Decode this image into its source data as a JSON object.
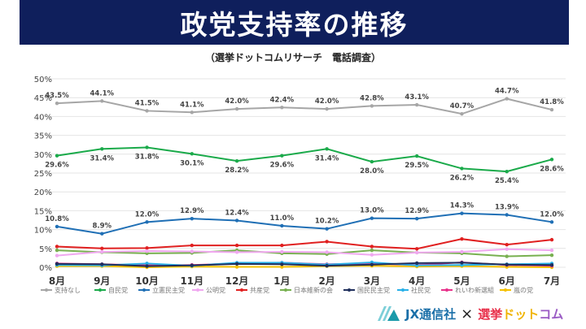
{
  "header": {
    "title": "政党支持率の推移",
    "subtitle": "（選挙ドットコムリサーチ　電話調査）"
  },
  "logo": {
    "left": "JX通信社",
    "cross": "×",
    "right_a": "選挙",
    "right_b": "ドット",
    "right_c": "コム"
  },
  "chart_data": {
    "type": "line",
    "categories": [
      "8月",
      "9月",
      "10月",
      "11月",
      "12月",
      "1月",
      "2月",
      "3月",
      "4月",
      "5月",
      "6月",
      "7月"
    ],
    "ylim": [
      0,
      50
    ],
    "yticks": [
      "0%",
      "5%",
      "10%",
      "15%",
      "20%",
      "25%",
      "30%",
      "35%",
      "40%",
      "45%",
      "50%"
    ],
    "grid": true,
    "legend_position": "bottom",
    "series": [
      {
        "name": "支持なし",
        "color": "#a6a6a6",
        "labels": "above",
        "values": [
          43.5,
          44.1,
          41.5,
          41.1,
          42.0,
          42.4,
          42.0,
          42.8,
          43.1,
          40.7,
          44.7,
          41.8
        ]
      },
      {
        "name": "自民党",
        "color": "#1aaa4a",
        "labels": "below",
        "values": [
          29.6,
          31.4,
          31.8,
          30.1,
          28.2,
          29.6,
          31.4,
          28.0,
          29.5,
          26.2,
          25.4,
          28.6
        ]
      },
      {
        "name": "立憲民主党",
        "color": "#1f6fb5",
        "labels": "above",
        "values": [
          10.8,
          8.9,
          12.0,
          12.9,
          12.4,
          11.0,
          10.2,
          13.0,
          12.9,
          14.3,
          13.9,
          12.0
        ]
      },
      {
        "name": "公明党",
        "color": "#f0a8f0",
        "values": [
          3.1,
          4.1,
          4.3,
          4.2,
          4.0,
          4.1,
          4.0,
          3.3,
          3.9,
          4.1,
          4.8,
          4.5
        ]
      },
      {
        "name": "共産党",
        "color": "#e02020",
        "values": [
          5.5,
          5.0,
          5.1,
          5.8,
          5.8,
          5.8,
          6.8,
          5.5,
          4.9,
          7.5,
          6.0,
          7.3
        ]
      },
      {
        "name": "日本維新の会",
        "color": "#78b050",
        "values": [
          4.5,
          4.0,
          3.7,
          3.8,
          4.5,
          3.7,
          3.5,
          4.5,
          3.9,
          3.7,
          2.9,
          3.2
        ]
      },
      {
        "name": "国民民主党",
        "color": "#1f2f5c",
        "values": [
          0.9,
          0.8,
          0.3,
          0.5,
          0.9,
          0.8,
          0.4,
          0.7,
          1.1,
          1.2,
          0.7,
          0.6
        ]
      },
      {
        "name": "社民党",
        "color": "#28b0e8",
        "values": [
          0.6,
          0.5,
          1.0,
          0.4,
          1.2,
          1.2,
          0.7,
          1.3,
          0.5,
          0.6,
          0.8,
          1.0
        ]
      },
      {
        "name": "れいわ新選組",
        "color": "#e8308a",
        "values": [
          1.0,
          0.8,
          0.5,
          0.6,
          1.0,
          1.2,
          0.8,
          1.0,
          0.6,
          1.3,
          0.6,
          0.4
        ]
      },
      {
        "name": "嵐の党",
        "color": "#f5c000",
        "values": [
          0.3,
          0.3,
          0.0,
          0.2,
          0.1,
          0.1,
          0.3,
          0.4,
          0.2,
          0.3,
          0.1,
          0.0
        ]
      }
    ]
  }
}
